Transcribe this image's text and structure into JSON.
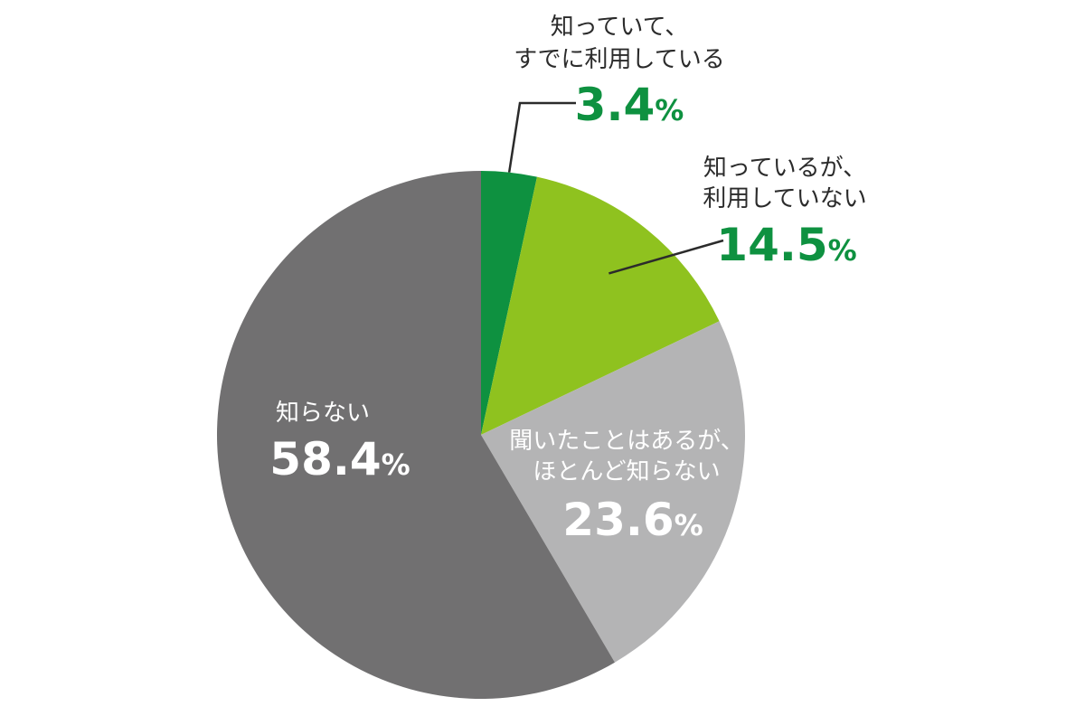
{
  "chart_data": {
    "type": "pie",
    "start_angle_deg": 0,
    "direction": "clockwise",
    "slices": [
      {
        "label_lines": [
          "知っていて、",
          "すでに利用している"
        ],
        "value": 3.4,
        "pct_text": "3.4",
        "color": "#0e9140",
        "label_color": "#2b2b2b",
        "value_color": "#0e9140",
        "label_position": "outside"
      },
      {
        "label_lines": [
          "知っているが、",
          "利用していない"
        ],
        "value": 14.5,
        "pct_text": "14.5",
        "color": "#8fc21f",
        "label_color": "#2b2b2b",
        "value_color": "#0e9140",
        "label_position": "outside"
      },
      {
        "label_lines": [
          "聞いたことはあるが、",
          "ほとんど知らない"
        ],
        "value": 23.6,
        "pct_text": "23.6",
        "color": "#b4b4b5",
        "label_color": "#ffffff",
        "value_color": "#ffffff",
        "label_position": "inside"
      },
      {
        "label_lines": [
          "知らない"
        ],
        "value": 58.4,
        "pct_text": "58.4",
        "color": "#717071",
        "label_color": "#ffffff",
        "value_color": "#ffffff",
        "label_position": "inside"
      }
    ],
    "percent_sign": "%",
    "leader_line_color": "#2b2b2b"
  }
}
